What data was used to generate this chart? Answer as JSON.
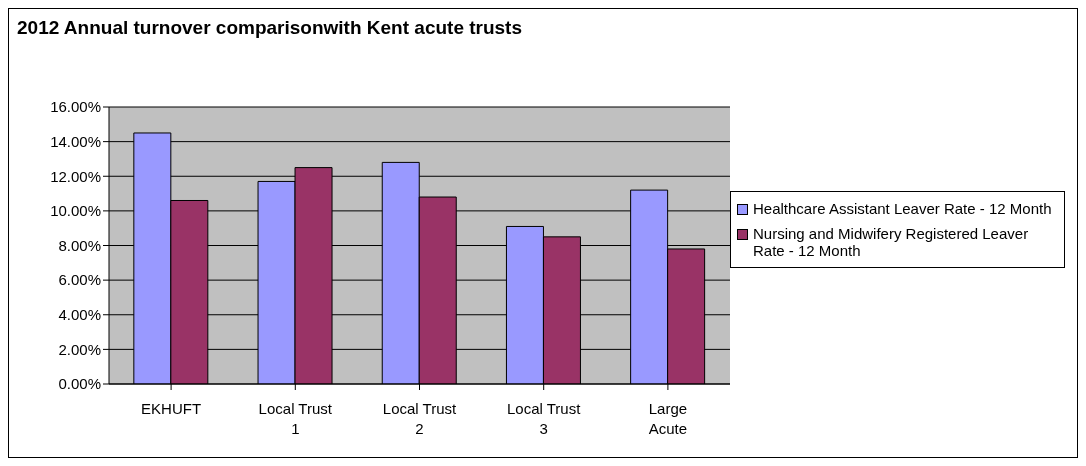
{
  "chart_data": {
    "type": "bar",
    "title": "2012 Annual turnover comparisonwith Kent acute trusts",
    "categories": [
      "EKHUFT",
      "Local Trust 1",
      "Local Trust 2",
      "Local Trust 3",
      "Large Acute"
    ],
    "series": [
      {
        "name": "Healthcare Assistant Leaver Rate - 12 Month",
        "color": "#9999ff",
        "values": [
          14.5,
          11.7,
          12.8,
          9.1,
          11.2
        ]
      },
      {
        "name": "Nursing and Midwifery Registered Leaver Rate - 12 Month",
        "color": "#993366",
        "values": [
          10.6,
          12.5,
          10.8,
          8.5,
          7.8
        ]
      }
    ],
    "ylim": [
      0,
      16
    ],
    "yticks": [
      {
        "value": 0,
        "label": "0.00%"
      },
      {
        "value": 2,
        "label": "2.00%"
      },
      {
        "value": 4,
        "label": "4.00%"
      },
      {
        "value": 6,
        "label": "6.00%"
      },
      {
        "value": 8,
        "label": "8.00%"
      },
      {
        "value": 10,
        "label": "10.00%"
      },
      {
        "value": 12,
        "label": "12.00%"
      },
      {
        "value": 14,
        "label": "14.00%"
      },
      {
        "value": 16,
        "label": "16.00%"
      }
    ],
    "grid": "y",
    "legend": "right"
  }
}
